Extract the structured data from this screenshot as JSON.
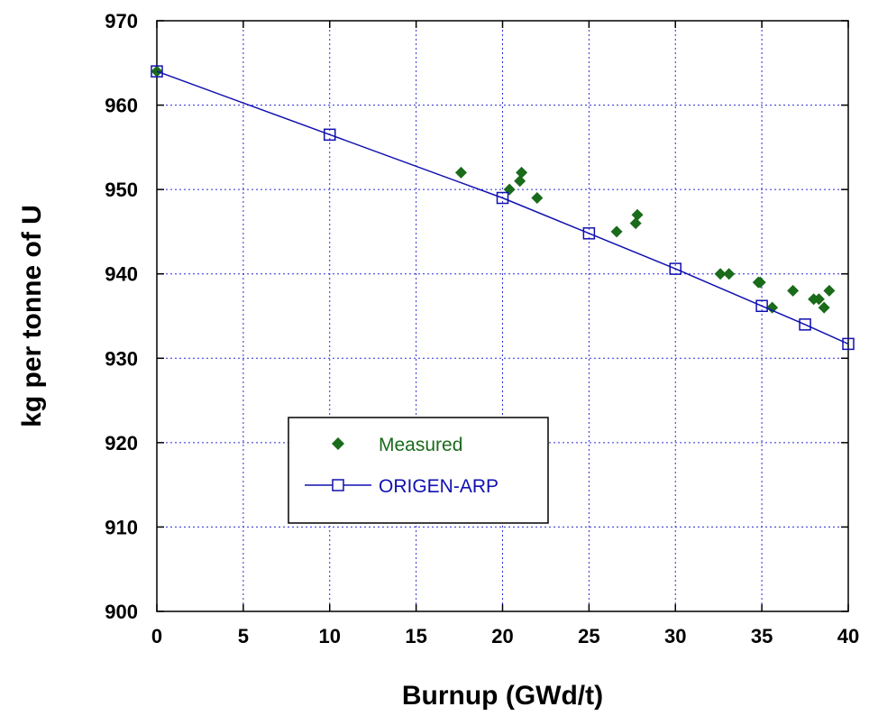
{
  "chart_data": {
    "type": "scatter",
    "title": "",
    "xlabel": "Burnup (GWd/t)",
    "ylabel": "kg per tonne of U",
    "xlim": [
      0,
      40
    ],
    "ylim": [
      900,
      970
    ],
    "x_ticks": [
      "0",
      "5",
      "10",
      "15",
      "20",
      "25",
      "30",
      "35",
      "40"
    ],
    "y_ticks": [
      "900",
      "910",
      "920",
      "930",
      "940",
      "950",
      "960",
      "970"
    ],
    "grid": true,
    "legend_position": "lower-left",
    "series": [
      {
        "name": "Measured",
        "style": "scatter",
        "marker": "diamond-filled",
        "color": "#1a6b1a",
        "points": [
          [
            0,
            964
          ],
          [
            17.6,
            952
          ],
          [
            20.4,
            950
          ],
          [
            21.0,
            951
          ],
          [
            21.1,
            952
          ],
          [
            22.0,
            949
          ],
          [
            26.6,
            945
          ],
          [
            27.7,
            946
          ],
          [
            27.8,
            947
          ],
          [
            32.6,
            940
          ],
          [
            33.1,
            940
          ],
          [
            34.8,
            939
          ],
          [
            34.9,
            939
          ],
          [
            35.6,
            936
          ],
          [
            36.8,
            938
          ],
          [
            38.0,
            937
          ],
          [
            38.3,
            937
          ],
          [
            38.6,
            936
          ],
          [
            38.9,
            938
          ]
        ]
      },
      {
        "name": "ORIGEN-ARP",
        "style": "line",
        "marker": "square-open",
        "color": "#1010b0",
        "points": [
          [
            0,
            964
          ],
          [
            10,
            956.5
          ],
          [
            20,
            949
          ],
          [
            25,
            944.8
          ],
          [
            30,
            940.6
          ],
          [
            35,
            936.2
          ],
          [
            37.5,
            934
          ],
          [
            40,
            931.7
          ]
        ]
      }
    ]
  }
}
